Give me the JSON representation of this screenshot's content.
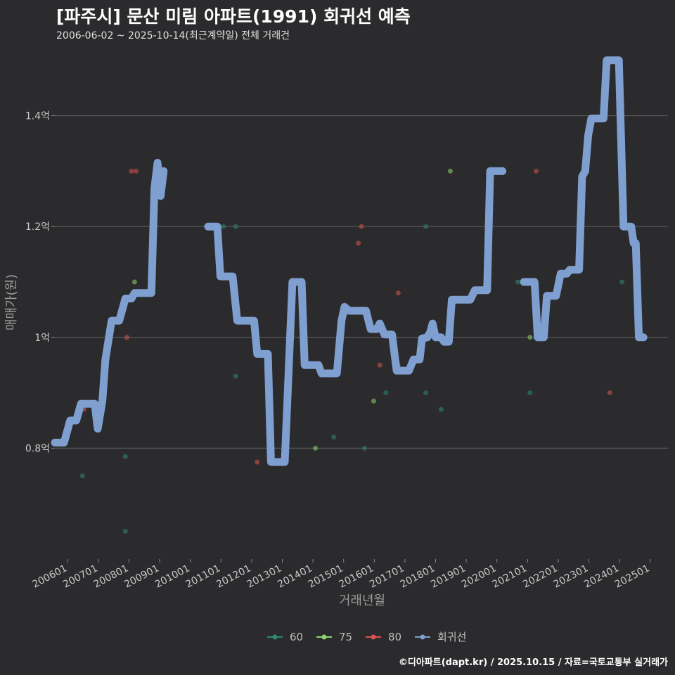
{
  "header": {
    "title": "[파주시] 문산 미림 아파트(1991) 회귀선 예측",
    "subtitle": "2006-06-02 ~ 2025-10-14(최근계약일) 전체 거래건"
  },
  "footer": {
    "credit": "©디아파트(dapt.kr) / 2025.10.15 / 자료=국토교통부 실거래가"
  },
  "colors": {
    "background": "#2b2b2d",
    "grid": "#5a5a5a",
    "s60": "#2e8b6e",
    "s75": "#8fd46a",
    "s80": "#d9534f",
    "regression": "#7f9fd0"
  },
  "chart_data": {
    "type": "line",
    "xlabel": "거래년월",
    "ylabel": "매매가(원)",
    "xlim": [
      2006.0,
      2026.0
    ],
    "ylim": [
      0.6,
      1.52
    ],
    "y_ticks": [
      0.8,
      1.0,
      1.2,
      1.4
    ],
    "y_tick_labels": [
      "0.8억",
      "1억",
      "1.2억",
      "1.4억"
    ],
    "x_ticks": [
      2006.42,
      2007.42,
      2008.42,
      2009.42,
      2010.42,
      2011.42,
      2012.42,
      2013.42,
      2014.42,
      2015.42,
      2016.42,
      2017.42,
      2018.42,
      2019.42,
      2020.42,
      2021.42,
      2022.42,
      2023.42,
      2024.42,
      2025.42
    ],
    "x_tick_labels": [
      "200601",
      "200701",
      "200801",
      "200901",
      "201001",
      "201101",
      "201201",
      "201301",
      "201401",
      "201501",
      "201601",
      "201701",
      "201801",
      "201901",
      "202001",
      "202101",
      "202201",
      "202301",
      "202401",
      "202501"
    ],
    "legend": [
      {
        "key": "s60",
        "label": "60"
      },
      {
        "key": "s75",
        "label": "75"
      },
      {
        "key": "s80",
        "label": "80"
      },
      {
        "key": "regression",
        "label": "회귀선"
      }
    ],
    "points": {
      "s60": [
        [
          2006.9,
          0.75
        ],
        [
          2008.3,
          0.65
        ],
        [
          2008.3,
          0.785
        ],
        [
          2011.5,
          1.2
        ],
        [
          2011.9,
          0.93
        ],
        [
          2011.9,
          1.2
        ],
        [
          2015.1,
          0.82
        ],
        [
          2016.1,
          0.8
        ],
        [
          2016.8,
          0.9
        ],
        [
          2017.2,
          0.95
        ],
        [
          2018.1,
          0.9
        ],
        [
          2018.1,
          1.2
        ],
        [
          2018.6,
          0.87
        ],
        [
          2021.1,
          1.1
        ],
        [
          2021.5,
          0.9
        ],
        [
          2024.5,
          1.1
        ]
      ],
      "s75": [
        [
          2008.6,
          1.1
        ],
        [
          2014.5,
          0.8
        ],
        [
          2016.4,
          0.885
        ],
        [
          2018.9,
          1.3
        ],
        [
          2021.5,
          1.0
        ]
      ],
      "s80": [
        [
          2006.95,
          0.87
        ],
        [
          2008.35,
          1.0
        ],
        [
          2008.5,
          1.3
        ],
        [
          2008.65,
          1.3
        ],
        [
          2012.6,
          0.775
        ],
        [
          2014.1,
          1.1
        ],
        [
          2015.9,
          1.17
        ],
        [
          2016.0,
          1.2
        ],
        [
          2016.6,
          0.95
        ],
        [
          2017.2,
          1.08
        ],
        [
          2021.7,
          1.3
        ],
        [
          2024.1,
          0.9
        ]
      ]
    },
    "regression": [
      [
        2006.0,
        0.81
      ],
      [
        2006.3,
        0.81
      ],
      [
        2006.5,
        0.85
      ],
      [
        2006.7,
        0.85
      ],
      [
        2006.85,
        0.88
      ],
      [
        2007.3,
        0.88
      ],
      [
        2007.4,
        0.835
      ],
      [
        2007.55,
        0.885
      ],
      [
        2007.65,
        0.96
      ],
      [
        2007.85,
        1.03
      ],
      [
        2008.1,
        1.03
      ],
      [
        2008.3,
        1.07
      ],
      [
        2008.5,
        1.07
      ],
      [
        2008.6,
        1.08
      ],
      [
        2009.15,
        1.08
      ],
      [
        2009.25,
        1.27
      ],
      [
        2009.35,
        1.315
      ],
      [
        2009.45,
        1.255
      ],
      [
        2009.55,
        1.3
      ],
      null,
      [
        2011.0,
        1.2
      ],
      [
        2011.3,
        1.2
      ],
      [
        2011.4,
        1.11
      ],
      [
        2011.8,
        1.11
      ],
      [
        2011.95,
        1.03
      ],
      [
        2012.5,
        1.03
      ],
      [
        2012.6,
        0.97
      ],
      [
        2012.95,
        0.97
      ],
      [
        2013.05,
        0.775
      ],
      [
        2013.5,
        0.775
      ],
      [
        2013.75,
        1.1
      ],
      [
        2014.05,
        1.1
      ],
      [
        2014.15,
        0.95
      ],
      [
        2014.6,
        0.95
      ],
      [
        2014.7,
        0.935
      ],
      [
        2015.2,
        0.935
      ],
      [
        2015.35,
        1.03
      ],
      [
        2015.45,
        1.055
      ],
      [
        2015.6,
        1.048
      ],
      [
        2016.15,
        1.048
      ],
      [
        2016.3,
        1.015
      ],
      [
        2016.5,
        1.015
      ],
      [
        2016.6,
        1.025
      ],
      [
        2016.75,
        1.005
      ],
      [
        2017.0,
        1.005
      ],
      [
        2017.15,
        0.94
      ],
      [
        2017.55,
        0.94
      ],
      [
        2017.7,
        0.96
      ],
      [
        2017.9,
        0.96
      ],
      [
        2017.98,
        0.998
      ],
      [
        2018.15,
        1.0
      ],
      [
        2018.25,
        1.01
      ],
      [
        2018.32,
        1.025
      ],
      [
        2018.42,
        1.0
      ],
      [
        2018.6,
        1.0
      ],
      [
        2018.7,
        0.992
      ],
      [
        2018.85,
        0.992
      ],
      [
        2018.95,
        1.068
      ],
      [
        2019.55,
        1.068
      ],
      [
        2019.7,
        1.085
      ],
      [
        2020.1,
        1.085
      ],
      [
        2020.2,
        1.3
      ],
      [
        2020.6,
        1.3
      ],
      null,
      [
        2021.3,
        1.1
      ],
      [
        2021.65,
        1.1
      ],
      [
        2021.75,
        1.0
      ],
      [
        2021.95,
        1.0
      ],
      [
        2022.05,
        1.075
      ],
      [
        2022.35,
        1.075
      ],
      [
        2022.5,
        1.115
      ],
      [
        2022.7,
        1.115
      ],
      [
        2022.8,
        1.122
      ],
      [
        2023.1,
        1.122
      ],
      [
        2023.2,
        1.29
      ],
      [
        2023.3,
        1.3
      ],
      [
        2023.4,
        1.365
      ],
      [
        2023.5,
        1.395
      ],
      [
        2023.9,
        1.395
      ],
      [
        2024.0,
        1.5
      ],
      [
        2024.4,
        1.5
      ],
      [
        2024.55,
        1.2
      ],
      [
        2024.8,
        1.2
      ],
      [
        2024.88,
        1.17
      ],
      [
        2024.95,
        1.17
      ],
      [
        2025.05,
        1.0
      ],
      [
        2025.2,
        1.0
      ]
    ]
  }
}
